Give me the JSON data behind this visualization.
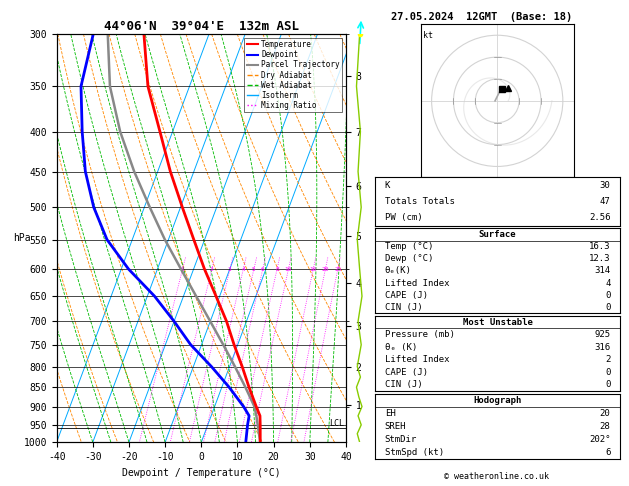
{
  "title_left": "44°06'N  39°04'E  132m ASL",
  "title_right": "27.05.2024  12GMT  (Base: 18)",
  "xlabel": "Dewpoint / Temperature (°C)",
  "ylabel_left": "hPa",
  "pressure_ticks": [
    300,
    350,
    400,
    450,
    500,
    550,
    600,
    650,
    700,
    750,
    800,
    850,
    900,
    950,
    1000
  ],
  "xlim": [
    -40,
    40
  ],
  "temp_profile": {
    "pressure": [
      1000,
      950,
      925,
      900,
      850,
      800,
      750,
      700,
      650,
      600,
      550,
      500,
      450,
      400,
      350,
      300
    ],
    "temperature": [
      16.3,
      14.5,
      13.5,
      11.5,
      7.5,
      3.5,
      -1.0,
      -5.5,
      -11.0,
      -17.0,
      -23.0,
      -29.5,
      -36.5,
      -43.5,
      -51.5,
      -58.0
    ],
    "color": "#ff0000",
    "linewidth": 2.0
  },
  "dewpoint_profile": {
    "pressure": [
      1000,
      950,
      925,
      900,
      850,
      800,
      750,
      700,
      650,
      600,
      550,
      500,
      450,
      400,
      350,
      300
    ],
    "temperature": [
      12.3,
      11.0,
      10.5,
      8.0,
      2.0,
      -5.0,
      -13.0,
      -20.0,
      -28.0,
      -38.0,
      -47.0,
      -54.0,
      -60.0,
      -65.0,
      -70.0,
      -72.0
    ],
    "color": "#0000ff",
    "linewidth": 2.0
  },
  "parcel_profile": {
    "pressure": [
      1000,
      950,
      925,
      900,
      850,
      800,
      750,
      700,
      650,
      600,
      550,
      500,
      450,
      400,
      350,
      300
    ],
    "temperature": [
      16.3,
      13.8,
      12.5,
      11.0,
      6.5,
      1.5,
      -4.0,
      -10.0,
      -16.5,
      -23.5,
      -31.0,
      -38.5,
      -46.5,
      -54.5,
      -62.0,
      -68.0
    ],
    "color": "#888888",
    "linewidth": 1.8
  },
  "skew_factor": 35.0,
  "isotherm_color": "#00aaff",
  "dry_adiabat_color": "#ff8800",
  "wet_adiabat_color": "#00bb00",
  "mixing_ratio_color": "#ff00ff",
  "mixing_ratio_values": [
    1,
    2,
    3,
    4,
    5,
    6,
    8,
    10,
    16,
    20,
    25
  ],
  "km_ticks": [
    1,
    2,
    3,
    4,
    5,
    6,
    7,
    8
  ],
  "km_pressures": [
    895,
    800,
    710,
    625,
    545,
    470,
    400,
    340
  ],
  "lcl_pressure": 960,
  "lcl_label": "LCL",
  "background_color": "#ffffff",
  "stats": {
    "K": 30,
    "Totals_Totals": 47,
    "PW_cm": 2.56,
    "Surface_Temp": 16.3,
    "Surface_Dewp": 12.3,
    "Surface_theta_e": 314,
    "Surface_LI": 4,
    "Surface_CAPE": 0,
    "Surface_CIN": 0,
    "MU_Pressure": 925,
    "MU_theta_e": 316,
    "MU_LI": 2,
    "MU_CAPE": 0,
    "MU_CIN": 0,
    "EH": 20,
    "SREH": 28,
    "StmDir": 202,
    "StmSpd": 6
  },
  "copyright": "© weatheronline.co.uk"
}
